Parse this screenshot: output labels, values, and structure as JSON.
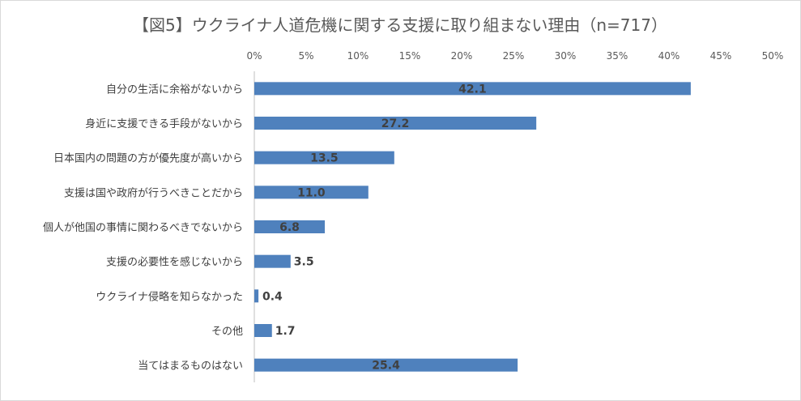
{
  "chart_data": {
    "type": "bar",
    "orientation": "horizontal",
    "title": "【図5】ウクライナ人道危機に関する支援に取り組まない理由（n=717）",
    "categories": [
      "自分の生活に余裕がないから",
      "身近に支援できる手段がないから",
      "日本国内の問題の方が優先度が高いから",
      "支援は国や政府が行うべきことだから",
      "個人が他国の事情に関わるべきでないから",
      "支援の必要性を感じないから",
      "ウクライナ侵略を知らなかった",
      "その他",
      "当てはまるものはない"
    ],
    "values": [
      42.1,
      27.2,
      13.5,
      11.0,
      6.8,
      3.5,
      0.4,
      1.7,
      25.4
    ],
    "value_labels": [
      "42.1",
      "27.2",
      "13.5",
      "11.0",
      "6.8",
      "3.5",
      "0.4",
      "1.7",
      "25.4"
    ],
    "x_ticks": [
      "0%",
      "5%",
      "10%",
      "15%",
      "20%",
      "25%",
      "30%",
      "35%",
      "40%",
      "45%",
      "50%"
    ],
    "xlim": [
      0,
      50
    ],
    "axis_position": "top",
    "grid": false,
    "legend": "none",
    "colors": {
      "bar": "#4f81bd",
      "axis": "#bfbfbf",
      "text": "#404040"
    }
  }
}
